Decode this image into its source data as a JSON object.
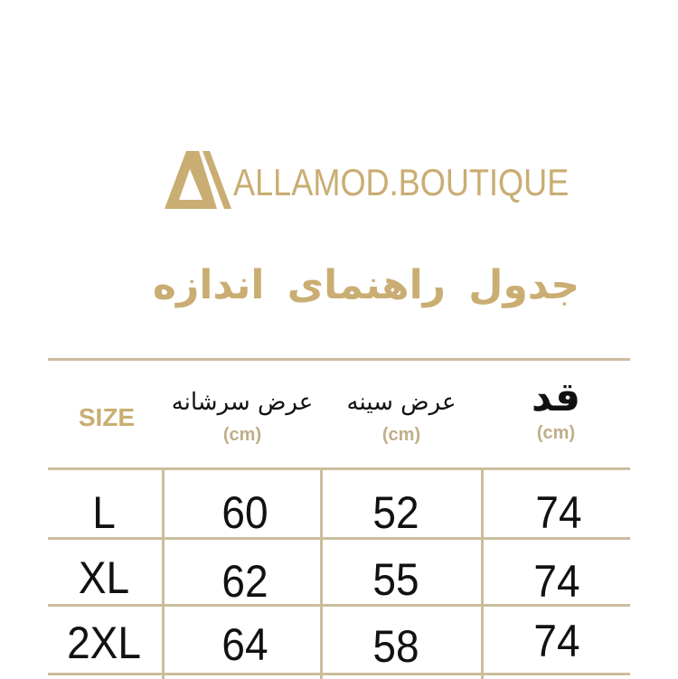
{
  "brand": {
    "name": "ALLAMOD.BOUTIQUE",
    "color": "#c9ad72",
    "logo_icon": "triangle-logo-icon"
  },
  "title": "جدول راهنمای اندازه",
  "table": {
    "headers": [
      {
        "label": "SIZE",
        "unit": ""
      },
      {
        "label": "عرض سرشانه",
        "unit": "(cm)"
      },
      {
        "label": "عرض سینه",
        "unit": "(cm)"
      },
      {
        "label": "قد",
        "unit": "(cm)"
      }
    ],
    "rows": [
      {
        "size": "L",
        "shoulder": "60",
        "chest": "52",
        "height": "74"
      },
      {
        "size": "XL",
        "shoulder": "62",
        "chest": "55",
        "height": "74"
      },
      {
        "size": "2XL",
        "shoulder": "64",
        "chest": "58",
        "height": "74"
      }
    ]
  }
}
